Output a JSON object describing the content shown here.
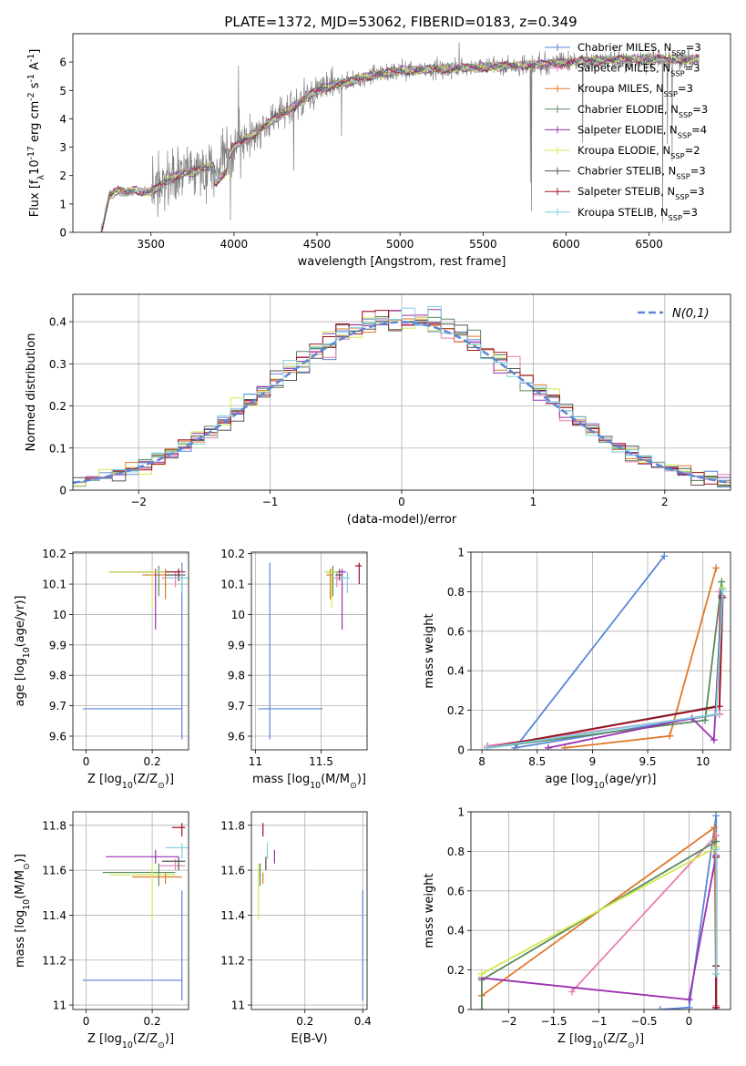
{
  "figure": {
    "title": "PLATE=1372, MJD=53062, FIBERID=0183, z=0.349"
  },
  "colors": {
    "Chabrier MILES": "#5b86d6",
    "Salpeter MILES": "#e87fb4",
    "Kroupa MILES": "#e0782a",
    "Chabrier ELODIE": "#5a8a5e",
    "Salpeter ELODIE": "#9a30b0",
    "Kroupa ELODIE": "#d0ea4a",
    "Chabrier STELIB": "#555555",
    "Salpeter STELIB": "#a01020",
    "Kroupa STELIB": "#80d0e0",
    "data": "#808080",
    "gauss": "#5b86d6"
  },
  "chart_data": [
    {
      "id": "spectrum",
      "type": "line",
      "xlabel": "wavelength [Angstrom, rest frame]",
      "ylabel": "Flux [f$_\\lambda$10$^{-17}$ erg cm$^{-2}$ s$^{-1}$ A$^{-1}$]",
      "xlim": [
        3030,
        6990
      ],
      "ylim": [
        0,
        7
      ],
      "xticks": [
        3500,
        4000,
        4500,
        5000,
        5500,
        6000,
        6500
      ],
      "yticks": [
        0,
        1,
        2,
        3,
        4,
        5,
        6
      ],
      "envelope_x": [
        3200,
        3250,
        3300,
        3350,
        3400,
        3450,
        3500,
        3550,
        3600,
        3650,
        3700,
        3750,
        3800,
        3850,
        3900,
        3950,
        4000,
        4100,
        4200,
        4300,
        4400,
        4500,
        4600,
        4700,
        4800,
        4900,
        5000,
        5200,
        5400,
        5600,
        5800,
        6000,
        6200,
        6400,
        6600,
        6800
      ],
      "envelope_y": [
        0.0,
        1.3,
        1.45,
        1.4,
        1.5,
        1.4,
        1.45,
        1.6,
        1.8,
        2.0,
        2.1,
        2.1,
        2.2,
        2.3,
        2.3,
        2.6,
        3.0,
        3.4,
        3.8,
        4.2,
        4.6,
        5.0,
        5.2,
        5.3,
        5.5,
        5.6,
        5.7,
        5.75,
        5.8,
        5.85,
        5.9,
        6.0,
        6.05,
        6.1,
        6.1,
        6.1
      ],
      "legend": [
        {
          "label": "Chabrier MILES, N$_{SSP}$=3",
          "color_key": "Chabrier MILES"
        },
        {
          "label": "Salpeter MILES, N$_{SSP}$=3",
          "color_key": "Salpeter MILES"
        },
        {
          "label": "Kroupa MILES, N$_{SSP}$=3",
          "color_key": "Kroupa MILES"
        },
        {
          "label": "Chabrier ELODIE, N$_{SSP}$=3",
          "color_key": "Chabrier ELODIE"
        },
        {
          "label": "Salpeter ELODIE, N$_{SSP}$=4",
          "color_key": "Salpeter ELODIE"
        },
        {
          "label": "Kroupa ELODIE, N$_{SSP}$=2",
          "color_key": "Kroupa ELODIE"
        },
        {
          "label": "Chabrier STELIB, N$_{SSP}$=3",
          "color_key": "Chabrier STELIB"
        },
        {
          "label": "Salpeter STELIB, N$_{SSP}$=3",
          "color_key": "Salpeter STELIB"
        },
        {
          "label": "Kroupa STELIB, N$_{SSP}$=3",
          "color_key": "Kroupa STELIB"
        }
      ],
      "legend_position": "upper right"
    },
    {
      "id": "residuals",
      "type": "line",
      "xlabel": "(data-model)/error",
      "ylabel": "Normed distribution",
      "xlim": [
        -2.5,
        2.5
      ],
      "ylim": [
        0,
        0.465
      ],
      "xticks": [
        -2,
        -1,
        0,
        1,
        2
      ],
      "yticks": [
        0.0,
        0.1,
        0.2,
        0.3,
        0.4
      ],
      "bin_edges_range": [
        -2.5,
        2.5
      ],
      "n_bins": 50,
      "gauss_label": "$\\mathcal{N}(0,1)$",
      "legend_position": "upper right",
      "grid": true
    },
    {
      "id": "age_vs_Z",
      "type": "scatter",
      "xlabel": "Z [log$_{10}$(Z/Z$_\\odot$)]",
      "ylabel": "age  [log$_{10}$(age/yr)]",
      "xlim": [
        -0.04,
        0.31
      ],
      "ylim": [
        9.555,
        10.205
      ],
      "xticks": [
        0.0,
        0.2
      ],
      "yticks": [
        9.6,
        9.7,
        9.8,
        9.9,
        10.0,
        10.1,
        10.2
      ],
      "grid": true,
      "points": [
        {
          "m": "Chabrier MILES",
          "x": 0.29,
          "xerr": [
            0.3,
            0.0
          ],
          "y": 9.69,
          "yerr": [
            0.1,
            0.48
          ]
        },
        {
          "m": "Salpeter MILES",
          "x": 0.27,
          "xerr": [
            0.04,
            0.02
          ],
          "y": 10.12,
          "yerr": [
            0.03,
            0.02
          ]
        },
        {
          "m": "Kroupa MILES",
          "x": 0.24,
          "xerr": [
            0.07,
            0.06
          ],
          "y": 10.13,
          "yerr": [
            0.08,
            0.02
          ]
        },
        {
          "m": "Chabrier ELODIE",
          "x": 0.22,
          "xerr": [
            0.15,
            0.06
          ],
          "y": 10.14,
          "yerr": [
            0.08,
            0.02
          ]
        },
        {
          "m": "Salpeter ELODIE",
          "x": 0.21,
          "xerr": [
            0.14,
            0.07
          ],
          "y": 10.14,
          "yerr": [
            0.19,
            0.01
          ]
        },
        {
          "m": "Kroupa ELODIE",
          "x": 0.2,
          "xerr": [
            0.13,
            0.08
          ],
          "y": 10.14,
          "yerr": [
            0.12,
            0.01
          ]
        },
        {
          "m": "Chabrier STELIB",
          "x": 0.28,
          "xerr": [
            0.04,
            0.02
          ],
          "y": 10.13,
          "yerr": [
            0.02,
            0.02
          ]
        },
        {
          "m": "Salpeter STELIB",
          "x": 0.28,
          "xerr": [
            0.04,
            0.02
          ],
          "y": 10.14,
          "yerr": [
            0.03,
            0.01
          ]
        },
        {
          "m": "Kroupa STELIB",
          "x": 0.29,
          "xerr": [
            0.05,
            0.02
          ],
          "y": 10.12,
          "yerr": [
            0.05,
            0.02
          ]
        }
      ]
    },
    {
      "id": "age_vs_mass",
      "type": "scatter",
      "xlabel": "mass [log$_{10}$(M/M$_\\odot$)]",
      "ylabel": "",
      "xlim": [
        10.97,
        11.85
      ],
      "ylim": [
        9.555,
        10.205
      ],
      "xticks": [
        11.0,
        11.5
      ],
      "yticks": [
        9.6,
        9.7,
        9.8,
        9.9,
        10.0,
        10.1,
        10.2
      ],
      "grid": true,
      "points": [
        {
          "m": "Chabrier MILES",
          "x": 11.11,
          "xerr": [
            0.09,
            0.4
          ],
          "y": 9.69,
          "yerr": [
            0.1,
            0.48
          ]
        },
        {
          "m": "Salpeter MILES",
          "x": 11.62,
          "xerr": [
            0.02,
            0.03
          ],
          "y": 10.12,
          "yerr": [
            0.03,
            0.02
          ]
        },
        {
          "m": "Kroupa MILES",
          "x": 11.57,
          "xerr": [
            0.03,
            0.02
          ],
          "y": 10.13,
          "yerr": [
            0.08,
            0.02
          ]
        },
        {
          "m": "Chabrier ELODIE",
          "x": 11.59,
          "xerr": [
            0.06,
            0.04
          ],
          "y": 10.14,
          "yerr": [
            0.08,
            0.02
          ]
        },
        {
          "m": "Salpeter ELODIE",
          "x": 11.66,
          "xerr": [
            0.03,
            0.03
          ],
          "y": 10.14,
          "yerr": [
            0.19,
            0.01
          ]
        },
        {
          "m": "Kroupa ELODIE",
          "x": 11.58,
          "xerr": [
            0.05,
            0.04
          ],
          "y": 10.14,
          "yerr": [
            0.12,
            0.01
          ]
        },
        {
          "m": "Chabrier STELIB",
          "x": 11.64,
          "xerr": [
            0.03,
            0.02
          ],
          "y": 10.13,
          "yerr": [
            0.02,
            0.02
          ]
        },
        {
          "m": "Salpeter STELIB",
          "x": 11.79,
          "xerr": [
            0.03,
            0.02
          ],
          "y": 10.16,
          "yerr": [
            0.06,
            0.01
          ]
        },
        {
          "m": "Kroupa STELIB",
          "x": 11.7,
          "xerr": [
            0.05,
            0.02
          ],
          "y": 10.12,
          "yerr": [
            0.05,
            0.02
          ]
        }
      ]
    },
    {
      "id": "mass_vs_Z",
      "type": "scatter",
      "xlabel": "Z [log$_{10}$(Z/Z$_\\odot$)]",
      "ylabel": "mass [log$_{10}$(M/M$_\\odot$)]",
      "xlim": [
        -0.04,
        0.31
      ],
      "ylim": [
        10.98,
        11.86
      ],
      "xticks": [
        0.0,
        0.2
      ],
      "yticks": [
        11.0,
        11.2,
        11.4,
        11.6,
        11.8
      ],
      "grid": true,
      "points": [
        {
          "m": "Chabrier MILES",
          "x": 0.29,
          "xerr": [
            0.3,
            0.0
          ],
          "y": 11.11,
          "yerr": [
            0.09,
            0.4
          ]
        },
        {
          "m": "Salpeter MILES",
          "x": 0.27,
          "xerr": [
            0.05,
            0.03
          ],
          "y": 11.62,
          "yerr": [
            0.02,
            0.03
          ]
        },
        {
          "m": "Kroupa MILES",
          "x": 0.24,
          "xerr": [
            0.1,
            0.05
          ],
          "y": 11.57,
          "yerr": [
            0.03,
            0.02
          ]
        },
        {
          "m": "Chabrier ELODIE",
          "x": 0.22,
          "xerr": [
            0.17,
            0.05
          ],
          "y": 11.59,
          "yerr": [
            0.06,
            0.04
          ]
        },
        {
          "m": "Salpeter ELODIE",
          "x": 0.21,
          "xerr": [
            0.15,
            0.07
          ],
          "y": 11.66,
          "yerr": [
            0.03,
            0.03
          ]
        },
        {
          "m": "Kroupa ELODIE",
          "x": 0.2,
          "xerr": [
            0.13,
            0.07
          ],
          "y": 11.58,
          "yerr": [
            0.2,
            0.05
          ]
        },
        {
          "m": "Chabrier STELIB",
          "x": 0.28,
          "xerr": [
            0.05,
            0.02
          ],
          "y": 11.64,
          "yerr": [
            0.04,
            0.02
          ]
        },
        {
          "m": "Salpeter STELIB",
          "x": 0.29,
          "xerr": [
            0.03,
            0.01
          ],
          "y": 11.79,
          "yerr": [
            0.04,
            0.02
          ]
        },
        {
          "m": "Kroupa STELIB",
          "x": 0.29,
          "xerr": [
            0.05,
            0.02
          ],
          "y": 11.7,
          "yerr": [
            0.05,
            0.02
          ]
        }
      ]
    },
    {
      "id": "mass_vs_ebv",
      "type": "scatter",
      "xlabel": "E(B-V)",
      "ylabel": "",
      "xlim": [
        0.015,
        0.415
      ],
      "ylim": [
        10.98,
        11.86
      ],
      "xticks": [
        0.2,
        0.4
      ],
      "yticks": [
        11.0,
        11.2,
        11.4,
        11.6,
        11.8
      ],
      "grid": true,
      "points": [
        {
          "m": "Chabrier MILES",
          "x": 0.4,
          "y": 11.11,
          "yerr": [
            0.09,
            0.4
          ]
        },
        {
          "m": "Salpeter MILES",
          "x": 0.065,
          "y": 11.62,
          "yerr": [
            0.02,
            0.03
          ]
        },
        {
          "m": "Kroupa MILES",
          "x": 0.055,
          "y": 11.57,
          "yerr": [
            0.03,
            0.02
          ]
        },
        {
          "m": "Chabrier ELODIE",
          "x": 0.045,
          "y": 11.59,
          "yerr": [
            0.06,
            0.04
          ]
        },
        {
          "m": "Salpeter ELODIE",
          "x": 0.095,
          "y": 11.66,
          "yerr": [
            0.03,
            0.03
          ]
        },
        {
          "m": "Kroupa ELODIE",
          "x": 0.04,
          "y": 11.58,
          "yerr": [
            0.2,
            0.05
          ]
        },
        {
          "m": "Chabrier STELIB",
          "x": 0.065,
          "y": 11.64,
          "yerr": [
            0.04,
            0.02
          ]
        },
        {
          "m": "Salpeter STELIB",
          "x": 0.055,
          "y": 11.79,
          "yerr": [
            0.04,
            0.02
          ]
        },
        {
          "m": "Kroupa STELIB",
          "x": 0.07,
          "y": 11.7,
          "yerr": [
            0.05,
            0.02
          ]
        }
      ]
    },
    {
      "id": "weight_vs_age",
      "type": "line",
      "xlabel": "age  [log$_{10}$(age/yr)]",
      "ylabel": "mass weight",
      "xlim": [
        7.9,
        10.25
      ],
      "ylim": [
        0,
        1
      ],
      "xticks": [
        8.0,
        8.5,
        9.0,
        9.5,
        10.0
      ],
      "yticks": [
        0.0,
        0.2,
        0.4,
        0.6,
        0.8,
        1.0
      ],
      "grid": true,
      "series": [
        {
          "m": "Chabrier MILES",
          "x": [
            9.65,
            8.3,
            10.15
          ],
          "y": [
            0.98,
            0.01,
            0.18
          ]
        },
        {
          "m": "Salpeter MILES",
          "x": [
            8.05,
            10.15,
            10.15
          ],
          "y": [
            0.02,
            0.18,
            0.8
          ]
        },
        {
          "m": "Kroupa MILES",
          "x": [
            8.75,
            9.7,
            10.12
          ],
          "y": [
            0.01,
            0.07,
            0.92
          ]
        },
        {
          "m": "Chabrier ELODIE",
          "x": [
            8.05,
            10.02,
            10.17
          ],
          "y": [
            0.01,
            0.15,
            0.85
          ]
        },
        {
          "m": "Salpeter ELODIE",
          "x": [
            8.6,
            9.9,
            10.1,
            10.17
          ],
          "y": [
            0.01,
            0.16,
            0.05,
            0.78
          ]
        },
        {
          "m": "Kroupa ELODIE",
          "x": [
            10.12,
            10.18
          ],
          "y": [
            0.18,
            0.82
          ]
        },
        {
          "m": "Chabrier STELIB",
          "x": [
            8.05,
            10.12,
            10.17
          ],
          "y": [
            0.01,
            0.22,
            0.77
          ]
        },
        {
          "m": "Salpeter STELIB",
          "x": [
            8.05,
            10.15,
            10.18
          ],
          "y": [
            0.01,
            0.22,
            0.77
          ]
        },
        {
          "m": "Kroupa STELIB",
          "x": [
            8.05,
            10.12,
            10.18
          ],
          "y": [
            0.01,
            0.18,
            0.81
          ]
        }
      ]
    },
    {
      "id": "weight_vs_Z",
      "type": "line",
      "xlabel": "Z [log$_{10}$(Z/Z$_\\odot$)]",
      "ylabel": "mass weight",
      "xlim": [
        -2.42,
        0.46
      ],
      "ylim": [
        0,
        1
      ],
      "xticks": [
        -2.0,
        -1.5,
        -1.0,
        -0.5,
        0.0
      ],
      "yticks": [
        0.0,
        0.2,
        0.4,
        0.6,
        0.8,
        1.0
      ],
      "grid": true,
      "series": [
        {
          "m": "Chabrier MILES",
          "x": [
            -0.32,
            0.0,
            0.3,
            0.3
          ],
          "y": [
            0.0,
            0.01,
            0.98,
            0.0
          ]
        },
        {
          "m": "Salpeter MILES",
          "x": [
            -1.3,
            0.3,
            0.3
          ],
          "y": [
            0.09,
            0.88,
            0.02
          ]
        },
        {
          "m": "Kroupa MILES",
          "x": [
            -2.3,
            0.28,
            0.3
          ],
          "y": [
            0.07,
            0.92,
            0.0
          ]
        },
        {
          "m": "Chabrier ELODIE",
          "x": [
            -2.3,
            -2.3,
            0.3,
            0.3
          ],
          "y": [
            0.0,
            0.15,
            0.85,
            0.0
          ]
        },
        {
          "m": "Salpeter ELODIE",
          "x": [
            -2.3,
            0.0,
            0.3,
            0.3
          ],
          "y": [
            0.16,
            0.05,
            0.78,
            0.01
          ]
        },
        {
          "m": "Kroupa ELODIE",
          "x": [
            -2.3,
            0.3
          ],
          "y": [
            0.18,
            0.82
          ]
        },
        {
          "m": "Chabrier STELIB",
          "x": [
            0.3,
            0.3,
            0.3
          ],
          "y": [
            0.0,
            0.22,
            0.77
          ]
        },
        {
          "m": "Salpeter STELIB",
          "x": [
            0.3,
            0.3,
            0.3
          ],
          "y": [
            0.01,
            0.22,
            0.77
          ]
        },
        {
          "m": "Kroupa STELIB",
          "x": [
            0.3,
            0.3
          ],
          "y": [
            0.18,
            0.81
          ]
        }
      ]
    }
  ]
}
